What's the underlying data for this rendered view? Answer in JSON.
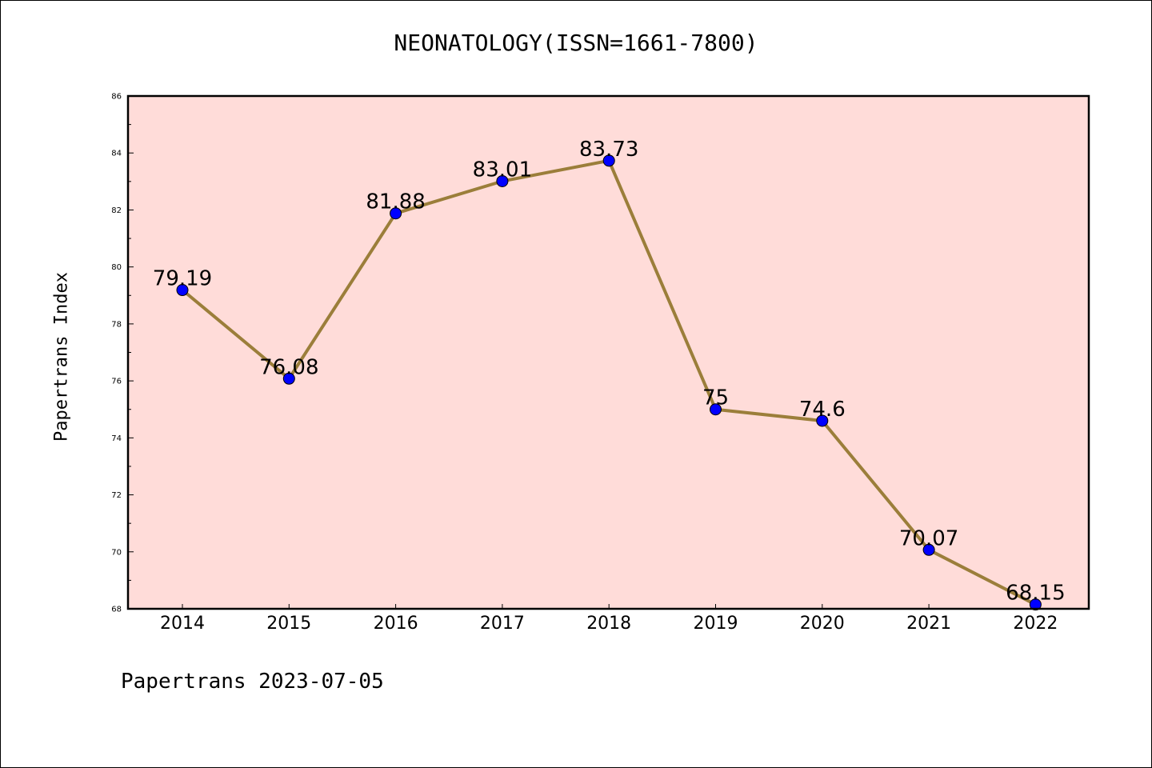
{
  "chart_data": {
    "type": "line",
    "title": "NEONATOLOGY(ISSN=1661-7800)",
    "ylabel": "Papertrans Index",
    "xlabel": "",
    "x": [
      "2014",
      "2015",
      "2016",
      "2017",
      "2018",
      "2019",
      "2020",
      "2021",
      "2022"
    ],
    "series": [
      {
        "values": [
          79.19,
          76.08,
          81.88,
          83.01,
          83.73,
          75,
          74.6,
          70.07,
          68.15
        ],
        "data_labels": [
          "79.19",
          "76.08",
          "81.88",
          "83.01",
          "83.73",
          "75",
          "74.6",
          "70.07",
          "68.15"
        ]
      }
    ],
    "ylim": [
      68,
      86
    ],
    "yticks": [
      "68",
      "70",
      "72",
      "74",
      "76",
      "78",
      "80",
      "82",
      "84",
      "86"
    ],
    "grid": false,
    "colors": {
      "plot_background": "#ffdcd9",
      "line": "#9b7e3a",
      "marker": "#0000ff"
    }
  },
  "footer": "Papertrans 2023-07-05"
}
